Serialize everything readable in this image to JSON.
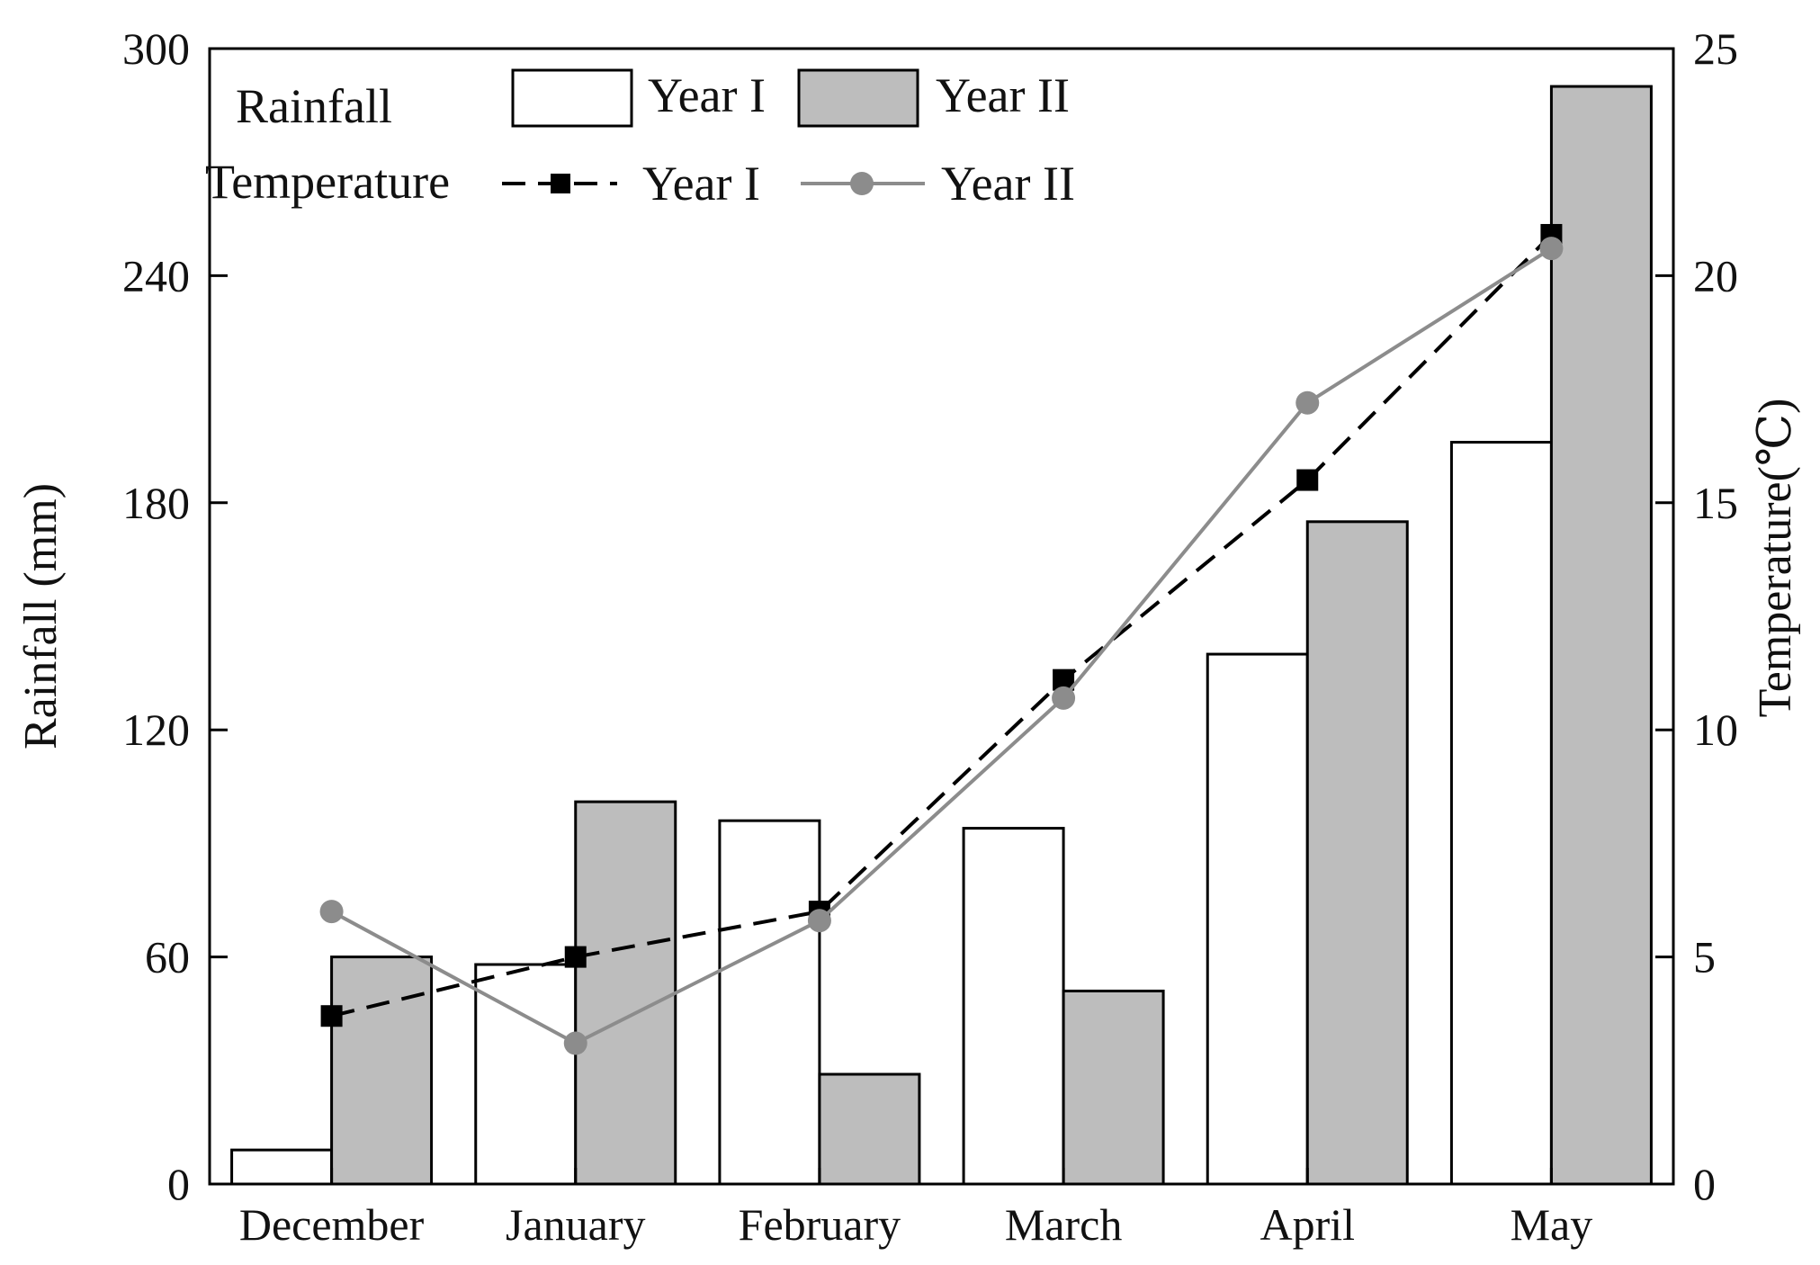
{
  "chart_data": {
    "type": "bar+line",
    "categories": [
      "December",
      "January",
      "February",
      "March",
      "April",
      "May"
    ],
    "rainfall": {
      "axis": "left",
      "ylabel": "Rainfall (mm)",
      "ylim": [
        0,
        300
      ],
      "yticks": [
        0,
        60,
        120,
        180,
        240,
        300
      ],
      "series": [
        {
          "name": "Year I",
          "values": [
            9,
            58,
            96,
            94,
            140,
            196
          ],
          "color": "#ffffff"
        },
        {
          "name": "Year II",
          "values": [
            60,
            101,
            29,
            51,
            175,
            290
          ],
          "color": "#bdbdbd"
        }
      ]
    },
    "temperature": {
      "axis": "right",
      "ylabel": "Temperature(℃)",
      "ylim": [
        0,
        25
      ],
      "yticks": [
        0,
        5,
        10,
        15,
        20,
        25
      ],
      "series": [
        {
          "name": "Year I",
          "values": [
            3.7,
            5.0,
            6.0,
            11.1,
            15.5,
            20.9
          ],
          "color": "#000000",
          "style": "dashed",
          "marker": "square"
        },
        {
          "name": "Year II",
          "values": [
            6.0,
            3.1,
            5.8,
            10.7,
            17.2,
            20.6
          ],
          "color": "#8c8c8c",
          "style": "solid",
          "marker": "circle"
        }
      ]
    },
    "legend": {
      "rainfall_title": "Rainfall",
      "temperature_title": "Temperature",
      "position": "top-left"
    }
  }
}
